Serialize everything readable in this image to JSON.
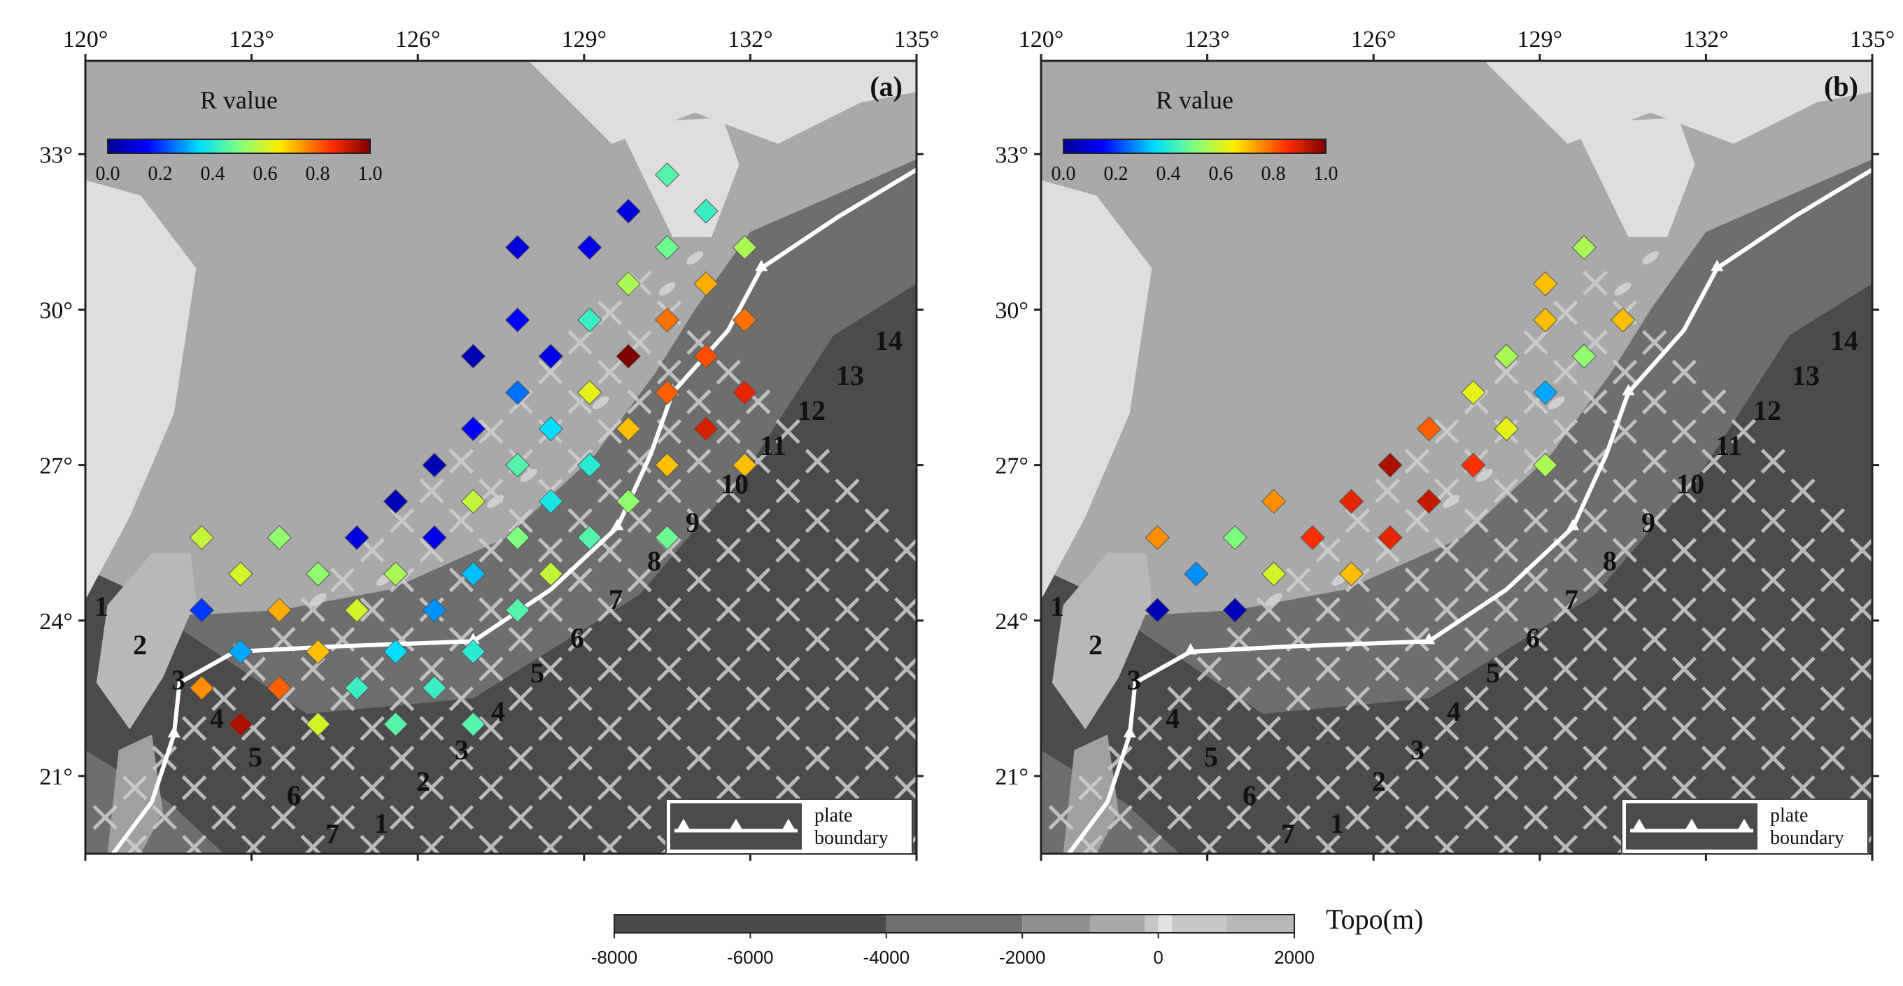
{
  "panels": [
    {
      "id": "a",
      "label": "(a)",
      "x_ticks": [
        "120°",
        "123°",
        "126°",
        "129°",
        "132°",
        "135°"
      ],
      "y_ticks": [
        "33°",
        "30°",
        "27°",
        "24°",
        "21°"
      ],
      "colorbar": {
        "title": "R value",
        "ticks": [
          "0.0",
          "0.2",
          "0.4",
          "0.6",
          "0.8",
          "1.0"
        ]
      },
      "legend": {
        "line1": "plate",
        "line2": "boundary"
      },
      "cross_section_numbers": [
        "1",
        "2",
        "3",
        "4",
        "5",
        "6",
        "7",
        "8",
        "9",
        "10",
        "11",
        "12",
        "13",
        "14"
      ],
      "along_strike_numbers": [
        "1",
        "2",
        "3",
        "4",
        "5",
        "6",
        "7"
      ],
      "r_values": [
        {
          "lon": 130.5,
          "lat": 32.6,
          "r": 0.45
        },
        {
          "lon": 129.8,
          "lat": 31.9,
          "r": 0.1
        },
        {
          "lon": 131.2,
          "lat": 31.9,
          "r": 0.42
        },
        {
          "lon": 127.8,
          "lat": 31.2,
          "r": 0.1
        },
        {
          "lon": 129.1,
          "lat": 31.2,
          "r": 0.12
        },
        {
          "lon": 130.5,
          "lat": 31.2,
          "r": 0.48
        },
        {
          "lon": 131.9,
          "lat": 31.2,
          "r": 0.55
        },
        {
          "lon": 129.8,
          "lat": 30.5,
          "r": 0.55
        },
        {
          "lon": 131.2,
          "lat": 30.5,
          "r": 0.72
        },
        {
          "lon": 127.8,
          "lat": 29.8,
          "r": 0.15
        },
        {
          "lon": 129.1,
          "lat": 29.8,
          "r": 0.42
        },
        {
          "lon": 130.5,
          "lat": 29.8,
          "r": 0.78
        },
        {
          "lon": 131.9,
          "lat": 29.8,
          "r": 0.78
        },
        {
          "lon": 127.0,
          "lat": 29.1,
          "r": 0.05
        },
        {
          "lon": 128.4,
          "lat": 29.1,
          "r": 0.12
        },
        {
          "lon": 129.8,
          "lat": 29.1,
          "r": 1.0
        },
        {
          "lon": 131.2,
          "lat": 29.1,
          "r": 0.82
        },
        {
          "lon": 127.8,
          "lat": 28.4,
          "r": 0.25
        },
        {
          "lon": 129.1,
          "lat": 28.4,
          "r": 0.62
        },
        {
          "lon": 130.5,
          "lat": 28.4,
          "r": 0.8
        },
        {
          "lon": 131.9,
          "lat": 28.4,
          "r": 0.88
        },
        {
          "lon": 127.0,
          "lat": 27.7,
          "r": 0.15
        },
        {
          "lon": 128.4,
          "lat": 27.7,
          "r": 0.35
        },
        {
          "lon": 129.8,
          "lat": 27.7,
          "r": 0.7
        },
        {
          "lon": 131.2,
          "lat": 27.7,
          "r": 0.9
        },
        {
          "lon": 126.3,
          "lat": 27.0,
          "r": 0.05
        },
        {
          "lon": 127.8,
          "lat": 27.0,
          "r": 0.45
        },
        {
          "lon": 129.1,
          "lat": 27.0,
          "r": 0.4
        },
        {
          "lon": 130.5,
          "lat": 27.0,
          "r": 0.7
        },
        {
          "lon": 131.9,
          "lat": 27.0,
          "r": 0.7
        },
        {
          "lon": 125.6,
          "lat": 26.3,
          "r": 0.05
        },
        {
          "lon": 127.0,
          "lat": 26.3,
          "r": 0.58
        },
        {
          "lon": 128.4,
          "lat": 26.3,
          "r": 0.38
        },
        {
          "lon": 129.8,
          "lat": 26.3,
          "r": 0.52
        },
        {
          "lon": 122.1,
          "lat": 25.6,
          "r": 0.58
        },
        {
          "lon": 123.5,
          "lat": 25.6,
          "r": 0.52
        },
        {
          "lon": 124.9,
          "lat": 25.6,
          "r": 0.1
        },
        {
          "lon": 126.3,
          "lat": 25.6,
          "r": 0.12
        },
        {
          "lon": 127.8,
          "lat": 25.6,
          "r": 0.5
        },
        {
          "lon": 129.1,
          "lat": 25.6,
          "r": 0.45
        },
        {
          "lon": 130.5,
          "lat": 25.6,
          "r": 0.48
        },
        {
          "lon": 122.8,
          "lat": 24.9,
          "r": 0.6
        },
        {
          "lon": 124.2,
          "lat": 24.9,
          "r": 0.52
        },
        {
          "lon": 125.6,
          "lat": 24.9,
          "r": 0.55
        },
        {
          "lon": 127.0,
          "lat": 24.9,
          "r": 0.32
        },
        {
          "lon": 128.4,
          "lat": 24.9,
          "r": 0.58
        },
        {
          "lon": 122.1,
          "lat": 24.2,
          "r": 0.2
        },
        {
          "lon": 123.5,
          "lat": 24.2,
          "r": 0.72
        },
        {
          "lon": 124.9,
          "lat": 24.2,
          "r": 0.6
        },
        {
          "lon": 126.3,
          "lat": 24.2,
          "r": 0.28
        },
        {
          "lon": 127.8,
          "lat": 24.2,
          "r": 0.45
        },
        {
          "lon": 122.8,
          "lat": 23.4,
          "r": 0.3
        },
        {
          "lon": 124.2,
          "lat": 23.4,
          "r": 0.7
        },
        {
          "lon": 125.6,
          "lat": 23.4,
          "r": 0.35
        },
        {
          "lon": 127.0,
          "lat": 23.4,
          "r": 0.4
        },
        {
          "lon": 122.1,
          "lat": 22.7,
          "r": 0.75
        },
        {
          "lon": 123.5,
          "lat": 22.7,
          "r": 0.8
        },
        {
          "lon": 124.9,
          "lat": 22.7,
          "r": 0.42
        },
        {
          "lon": 126.3,
          "lat": 22.7,
          "r": 0.42
        },
        {
          "lon": 122.8,
          "lat": 22.0,
          "r": 0.95
        },
        {
          "lon": 124.2,
          "lat": 22.0,
          "r": 0.6
        },
        {
          "lon": 125.6,
          "lat": 22.0,
          "r": 0.45
        },
        {
          "lon": 127.0,
          "lat": 22.0,
          "r": 0.45
        }
      ]
    },
    {
      "id": "b",
      "label": "(b)",
      "x_ticks": [
        "120°",
        "123°",
        "126°",
        "129°",
        "132°",
        "135°"
      ],
      "y_ticks": [
        "33°",
        "30°",
        "27°",
        "24°",
        "21°"
      ],
      "colorbar": {
        "title": "R value",
        "ticks": [
          "0.0",
          "0.2",
          "0.4",
          "0.6",
          "0.8",
          "1.0"
        ]
      },
      "legend": {
        "line1": "plate",
        "line2": "boundary"
      },
      "cross_section_numbers": [
        "1",
        "2",
        "3",
        "4",
        "5",
        "6",
        "7",
        "8",
        "9",
        "10",
        "11",
        "12",
        "13",
        "14"
      ],
      "along_strike_numbers": [
        "1",
        "2",
        "3",
        "4",
        "5",
        "6",
        "7"
      ],
      "r_values": [
        {
          "lon": 129.8,
          "lat": 31.2,
          "r": 0.55
        },
        {
          "lon": 129.1,
          "lat": 30.5,
          "r": 0.7
        },
        {
          "lon": 129.1,
          "lat": 29.8,
          "r": 0.7
        },
        {
          "lon": 130.5,
          "lat": 29.8,
          "r": 0.7
        },
        {
          "lon": 128.4,
          "lat": 29.1,
          "r": 0.55
        },
        {
          "lon": 129.8,
          "lat": 29.1,
          "r": 0.52
        },
        {
          "lon": 127.8,
          "lat": 28.4,
          "r": 0.62
        },
        {
          "lon": 129.1,
          "lat": 28.4,
          "r": 0.3
        },
        {
          "lon": 127.0,
          "lat": 27.7,
          "r": 0.8
        },
        {
          "lon": 128.4,
          "lat": 27.7,
          "r": 0.62
        },
        {
          "lon": 126.3,
          "lat": 27.0,
          "r": 0.95
        },
        {
          "lon": 127.8,
          "lat": 27.0,
          "r": 0.85
        },
        {
          "lon": 129.1,
          "lat": 27.0,
          "r": 0.55
        },
        {
          "lon": 124.2,
          "lat": 26.3,
          "r": 0.75
        },
        {
          "lon": 125.6,
          "lat": 26.3,
          "r": 0.88
        },
        {
          "lon": 127.0,
          "lat": 26.3,
          "r": 0.92
        },
        {
          "lon": 122.1,
          "lat": 25.6,
          "r": 0.75
        },
        {
          "lon": 123.5,
          "lat": 25.6,
          "r": 0.5
        },
        {
          "lon": 124.9,
          "lat": 25.6,
          "r": 0.85
        },
        {
          "lon": 126.3,
          "lat": 25.6,
          "r": 0.88
        },
        {
          "lon": 122.8,
          "lat": 24.9,
          "r": 0.28
        },
        {
          "lon": 124.2,
          "lat": 24.9,
          "r": 0.6
        },
        {
          "lon": 125.6,
          "lat": 24.9,
          "r": 0.7
        },
        {
          "lon": 122.1,
          "lat": 24.2,
          "r": 0.05
        },
        {
          "lon": 123.5,
          "lat": 24.2,
          "r": 0.05
        }
      ]
    }
  ],
  "topo_bar": {
    "title": "Topo(m)",
    "ticks": [
      "-8000",
      "-6000",
      "-4000",
      "-2000",
      "0",
      "2000"
    ],
    "colors": [
      "#4a4a4a",
      "#6a6a6a",
      "#8c8c8c",
      "#a8a8a8",
      "#c4c4c4",
      "#d8d8d8",
      "#c8c8c8",
      "#bcbcbc"
    ]
  },
  "colors": {
    "deep_sea": "#4b4b4b",
    "mid_sea": "#6e6e6e",
    "shelf": "#a9a9a9",
    "land": "#dedede",
    "plate_boundary": "#ffffff",
    "grid": "#cfcfcf"
  }
}
